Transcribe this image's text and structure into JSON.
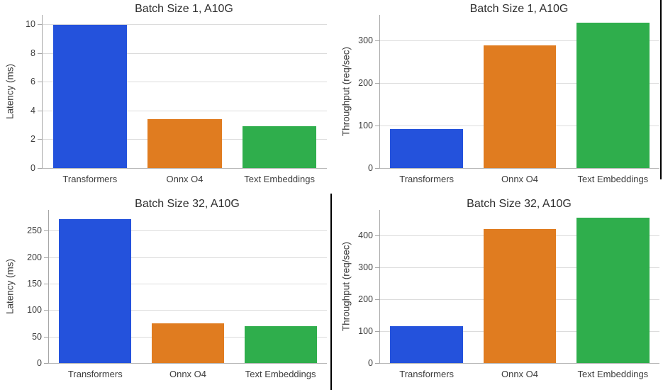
{
  "palette": {
    "transformers_blue": "#2452dc",
    "onnx_orange": "#e07c20",
    "text_embeddings_green": "#2fae4c",
    "gridline_gray": "#dcdcdc",
    "axis_spine_gray": "#a6a6a6",
    "text_dark_gray": "#3d3d3d",
    "divider_black": "#000000"
  },
  "chart_data": [
    {
      "type": "bar",
      "title": "Batch Size 1, A10G",
      "ylabel": "Latency (ms)",
      "xlabel": "",
      "categories": [
        "Transformers",
        "Onnx O4",
        "Text Embeddings"
      ],
      "values": [
        9.95,
        3.4,
        2.9
      ],
      "yticks": [
        0,
        2,
        4,
        6,
        8,
        10
      ],
      "ylim": [
        0,
        10.65
      ],
      "grid": "horizontal",
      "legend": "none"
    },
    {
      "type": "bar",
      "title": "Batch Size 1, A10G",
      "ylabel": "Throughput (req/sec)",
      "xlabel": "",
      "categories": [
        "Transformers",
        "Onnx O4",
        "Text Embeddings"
      ],
      "values": [
        92,
        289,
        342
      ],
      "yticks": [
        0,
        100,
        200,
        300
      ],
      "ylim": [
        0,
        360
      ],
      "grid": "horizontal",
      "legend": "none"
    },
    {
      "type": "bar",
      "title": "Batch Size 32, A10G",
      "ylabel": "Latency (ms)",
      "xlabel": "",
      "categories": [
        "Transformers",
        "Onnx O4",
        "Text Embeddings"
      ],
      "values": [
        272,
        75,
        69
      ],
      "yticks": [
        0,
        50,
        100,
        150,
        200,
        250
      ],
      "ylim": [
        0,
        289
      ],
      "grid": "horizontal",
      "legend": "none"
    },
    {
      "type": "bar",
      "title": "Batch Size 32, A10G",
      "ylabel": "Throughput (req/sec)",
      "xlabel": "",
      "categories": [
        "Transformers",
        "Onnx O4",
        "Text Embeddings"
      ],
      "values": [
        115,
        420,
        455
      ],
      "yticks": [
        0,
        100,
        200,
        300,
        400
      ],
      "ylim": [
        0,
        480
      ],
      "grid": "horizontal",
      "legend": "none"
    }
  ],
  "bar_color_order": [
    "transformers_blue",
    "onnx_orange",
    "text_embeddings_green"
  ]
}
